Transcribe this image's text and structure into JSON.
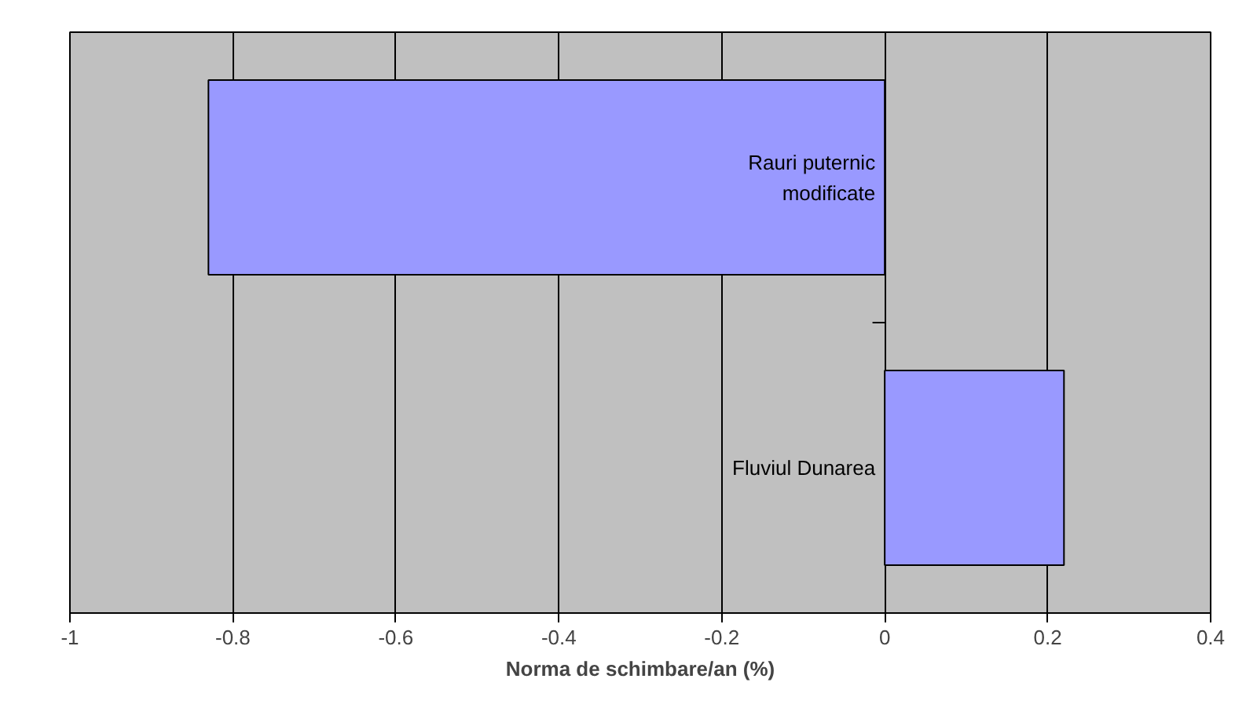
{
  "chart_data": {
    "type": "bar",
    "orientation": "horizontal",
    "xlabel": "Norma de schimbare/an (%)",
    "categories": [
      "Rauri puternic modificate",
      "Fluviul Dunarea"
    ],
    "values": [
      -0.83,
      0.22
    ],
    "color": "#9999ff",
    "xlim": [
      -1,
      0.4
    ],
    "xticks": [
      -1,
      -0.8,
      -0.6,
      -0.4,
      -0.2,
      0,
      0.2,
      0.4
    ],
    "grid": "x"
  }
}
